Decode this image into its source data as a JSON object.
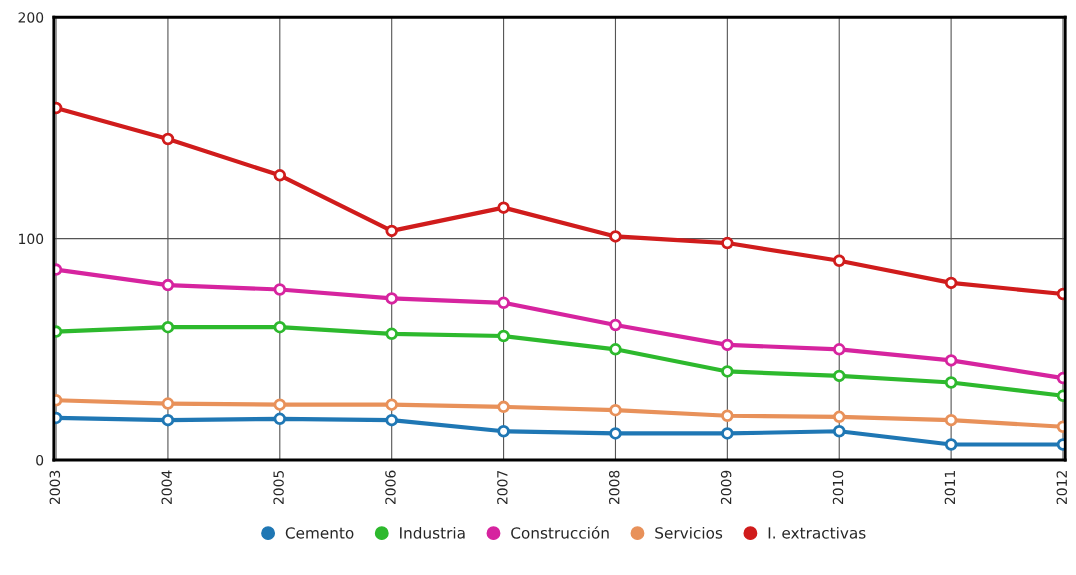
{
  "chart_data": {
    "type": "line",
    "categories": [
      "2003",
      "2004",
      "2005",
      "2006",
      "2007",
      "2008",
      "2009",
      "2010",
      "2011",
      "2012"
    ],
    "series": [
      {
        "name": "Cemento",
        "color": "#1f77b4",
        "values": [
          19,
          18,
          18.6,
          18,
          13,
          12,
          12,
          13,
          7,
          7
        ]
      },
      {
        "name": "Industria",
        "color": "#2db92d",
        "values": [
          58,
          60,
          60,
          57,
          56,
          50,
          40,
          38,
          35,
          29
        ]
      },
      {
        "name": "Construcción",
        "color": "#d6249f",
        "values": [
          86,
          79,
          77,
          73,
          71,
          61,
          52,
          50,
          45,
          37
        ]
      },
      {
        "name": "Servicios",
        "color": "#e8915a",
        "values": [
          27,
          25.5,
          25,
          25,
          24,
          22.5,
          20,
          19.5,
          18,
          15
        ]
      },
      {
        "name": "I. extractivas",
        "color": "#d01c1c",
        "values": [
          159,
          145,
          128.6,
          103.5,
          114,
          101,
          98,
          90,
          80,
          75
        ]
      }
    ],
    "ylim": [
      0,
      200
    ],
    "yticks": [
      0,
      100,
      200
    ],
    "grid": true,
    "legend": "bottom",
    "marker": "circle",
    "line_style": "solid"
  }
}
